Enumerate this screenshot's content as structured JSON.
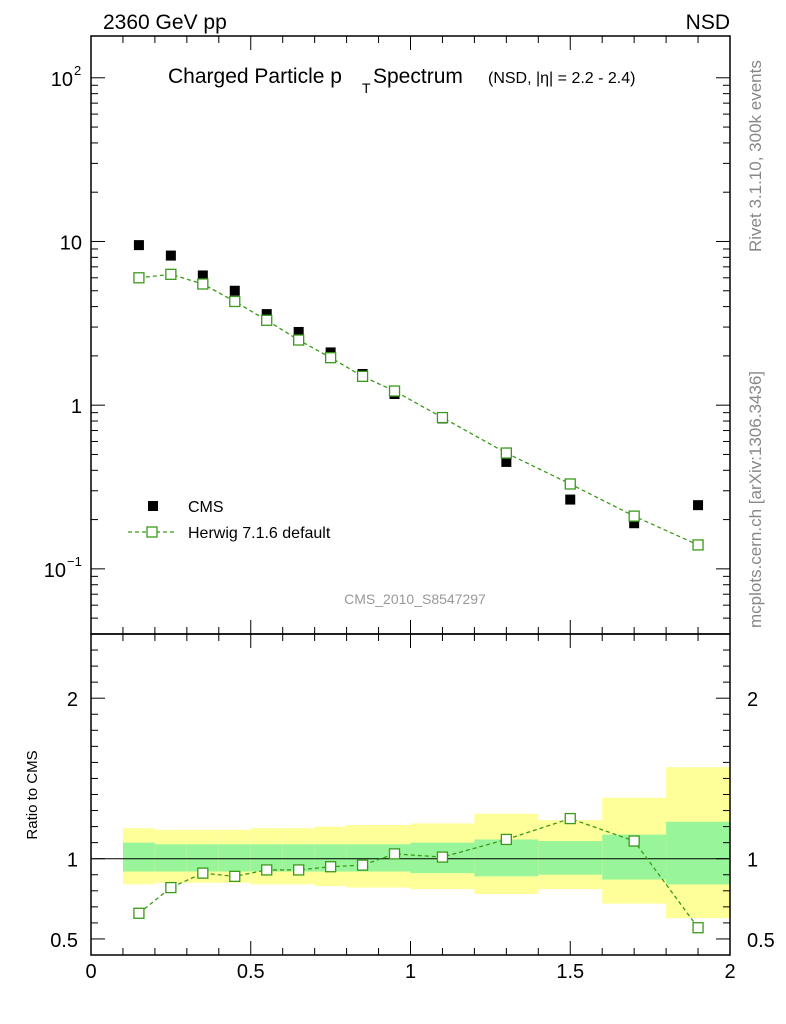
{
  "header": {
    "left": "2360 GeV pp",
    "right": "NSD"
  },
  "side_labels": {
    "rivet": "Rivet 3.1.10,  300k events",
    "mcplots": "mcplots.cern.ch [arXiv:1306.3436]"
  },
  "title": {
    "main": "Charged Particle p",
    "sub": "T",
    "main2": " Spectrum",
    "small": "(NSD, |η| = 2.2 - 2.4)"
  },
  "analysis_id": "CMS_2010_S8547297",
  "legend": {
    "data_label": "CMS",
    "mc_label": "Herwig 7.1.6 default"
  },
  "ratio_ylabel": "Ratio to CMS",
  "axes": {
    "x_ticks": [
      "0",
      "0.5",
      "1",
      "1.5",
      "2"
    ],
    "main_y_ticks": [
      {
        "v": 100,
        "base": "10",
        "exp": "2"
      },
      {
        "v": 10,
        "base": "10",
        "exp": ""
      },
      {
        "v": 1,
        "base": "1",
        "exp": ""
      },
      {
        "v": 0.1,
        "base": "10",
        "exp": "−1"
      }
    ],
    "ratio_y_ticks": [
      "2",
      "1",
      "0.5"
    ]
  },
  "colors": {
    "data": "#000000",
    "mc": "#3a9a1a",
    "band_inner": "#99f599",
    "band_outer": "#ffff99"
  },
  "chart_data": {
    "type": "scatter",
    "x_range": [
      0,
      2
    ],
    "y_range_main": [
      0.04,
      180
    ],
    "y_scale_main": "log",
    "y_range_ratio": [
      0.4,
      2.4
    ],
    "data": {
      "name": "CMS",
      "x": [
        0.15,
        0.25,
        0.35,
        0.45,
        0.55,
        0.65,
        0.75,
        0.85,
        0.95,
        1.1,
        1.3,
        1.5,
        1.7,
        1.9
      ],
      "y": [
        9.5,
        8.2,
        6.2,
        5.0,
        3.6,
        2.8,
        2.1,
        1.55,
        1.17,
        0.83,
        0.45,
        0.265,
        0.19,
        0.245
      ]
    },
    "mc": {
      "name": "Herwig 7.1.6 default",
      "x": [
        0.15,
        0.25,
        0.35,
        0.45,
        0.55,
        0.65,
        0.75,
        0.85,
        0.95,
        1.1,
        1.3,
        1.5,
        1.7,
        1.9
      ],
      "y": [
        6.0,
        6.3,
        5.5,
        4.3,
        3.3,
        2.5,
        1.95,
        1.5,
        1.22,
        0.84,
        0.51,
        0.33,
        0.21,
        0.14
      ]
    },
    "ratio": [
      0.66,
      0.82,
      0.91,
      0.89,
      0.93,
      0.93,
      0.95,
      0.96,
      1.03,
      1.01,
      1.12,
      1.25,
      1.11,
      0.57
    ],
    "bands": [
      {
        "x0": 0.1,
        "x1": 0.2,
        "inner": [
          0.92,
          1.1
        ],
        "outer": [
          0.84,
          1.19
        ]
      },
      {
        "x0": 0.2,
        "x1": 0.3,
        "inner": [
          0.92,
          1.09
        ],
        "outer": [
          0.85,
          1.18
        ]
      },
      {
        "x0": 0.3,
        "x1": 0.4,
        "inner": [
          0.92,
          1.09
        ],
        "outer": [
          0.85,
          1.18
        ]
      },
      {
        "x0": 0.4,
        "x1": 0.5,
        "inner": [
          0.92,
          1.09
        ],
        "outer": [
          0.85,
          1.18
        ]
      },
      {
        "x0": 0.5,
        "x1": 0.6,
        "inner": [
          0.92,
          1.09
        ],
        "outer": [
          0.84,
          1.19
        ]
      },
      {
        "x0": 0.6,
        "x1": 0.7,
        "inner": [
          0.92,
          1.09
        ],
        "outer": [
          0.84,
          1.19
        ]
      },
      {
        "x0": 0.7,
        "x1": 0.8,
        "inner": [
          0.92,
          1.09
        ],
        "outer": [
          0.83,
          1.2
        ]
      },
      {
        "x0": 0.8,
        "x1": 0.9,
        "inner": [
          0.92,
          1.09
        ],
        "outer": [
          0.82,
          1.21
        ]
      },
      {
        "x0": 0.9,
        "x1": 1.0,
        "inner": [
          0.92,
          1.09
        ],
        "outer": [
          0.82,
          1.21
        ]
      },
      {
        "x0": 1.0,
        "x1": 1.2,
        "inner": [
          0.91,
          1.1
        ],
        "outer": [
          0.81,
          1.22
        ]
      },
      {
        "x0": 1.2,
        "x1": 1.4,
        "inner": [
          0.89,
          1.12
        ],
        "outer": [
          0.78,
          1.28
        ]
      },
      {
        "x0": 1.4,
        "x1": 1.6,
        "inner": [
          0.9,
          1.11
        ],
        "outer": [
          0.81,
          1.24
        ]
      },
      {
        "x0": 1.6,
        "x1": 1.8,
        "inner": [
          0.87,
          1.15
        ],
        "outer": [
          0.72,
          1.38
        ]
      },
      {
        "x0": 1.8,
        "x1": 2.0,
        "inner": [
          0.84,
          1.23
        ],
        "outer": [
          0.63,
          1.57
        ]
      }
    ]
  }
}
